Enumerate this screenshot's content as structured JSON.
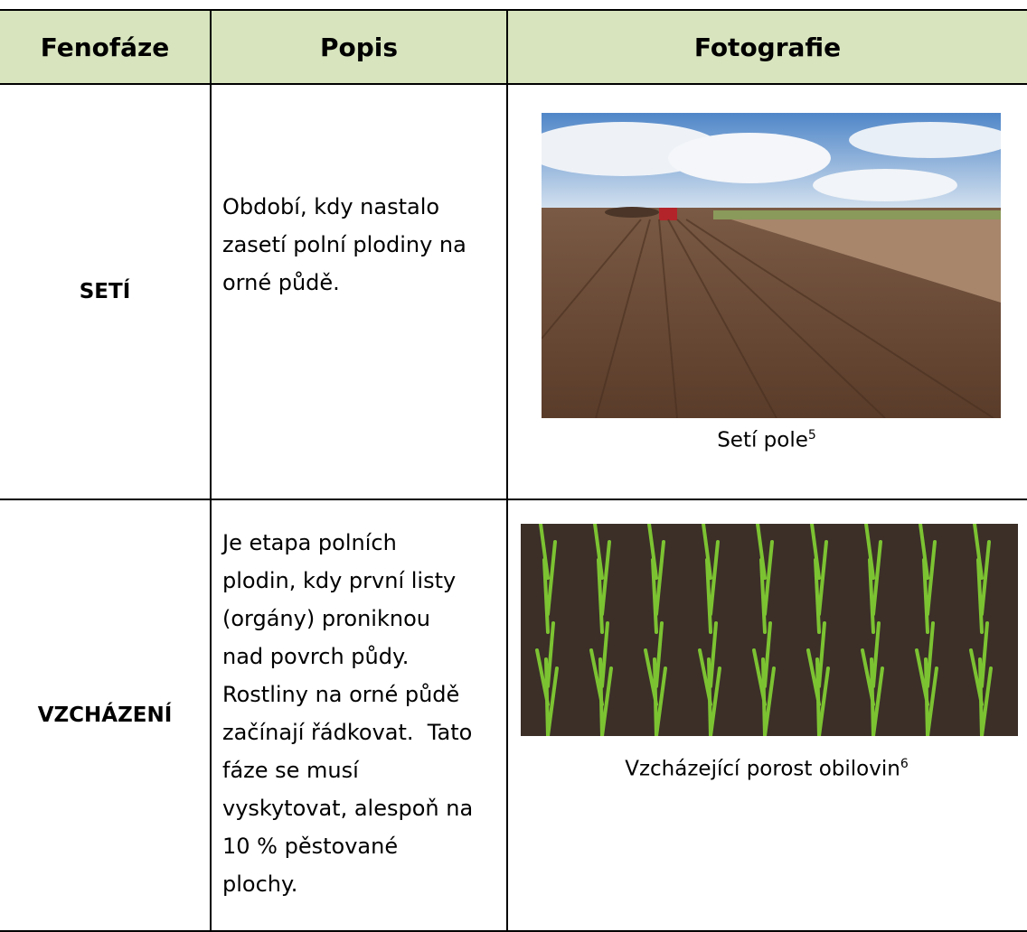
{
  "table": {
    "header": [
      "Fenofáze",
      "Popis",
      "Fotografie"
    ],
    "rows": [
      {
        "phase": "SETÍ",
        "description": [
          "Období, kdy nastalo",
          "zasetí polní plodiny na",
          "orné půdě."
        ],
        "caption": "Setí pole",
        "footnote": "5"
      },
      {
        "phase": "VZCHÁZENÍ",
        "description": [
          "Je etapa polních",
          "plodin, kdy první listy",
          "(orgány) proniknou",
          "nad povrch půdy.",
          "Rostliny na orné půdě",
          "začínají řádkovat.  Tato",
          "fáze se musí",
          "vyskytovat, alespoň na",
          "10 % pěstované",
          "plochy."
        ],
        "caption": "Vzcházející porost obilovin",
        "footnote": "6"
      }
    ]
  }
}
